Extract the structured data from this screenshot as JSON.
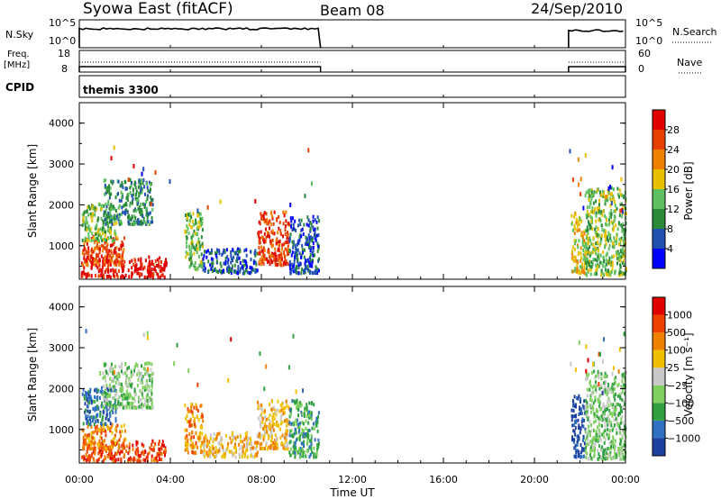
{
  "header": {
    "station": "Syowa East (fitACF)",
    "beam": "Beam 08",
    "date": "24/Sep/2010"
  },
  "strip_labels": {
    "nsky": "N.Sky",
    "nsky_ticks": [
      "10^5",
      "10^0"
    ],
    "nsearch": "N.Search",
    "nsearch_ticks": [
      "10^5",
      "10^0"
    ],
    "freq": "Freq.",
    "freq_unit": "[MHz]",
    "freq_ticks": [
      "18",
      "8"
    ],
    "nave": "Nave",
    "nave_ticks": [
      "60",
      "0"
    ],
    "cpid": "CPID",
    "cpid_value": "themis 3300"
  },
  "xaxis": {
    "label": "Time UT",
    "ticks": [
      "00:00",
      "04:00",
      "08:00",
      "12:00",
      "16:00",
      "20:00",
      "00:00"
    ]
  },
  "power_panel": {
    "ylabel": "Slant Range [km]",
    "yticks": [
      "4000",
      "3000",
      "2000",
      "1000"
    ],
    "cbar_label": "Power [dB]",
    "cbar_ticks": [
      "28",
      "24",
      "20",
      "16",
      "12",
      "8",
      "4"
    ]
  },
  "velocity_panel": {
    "ylabel": "Slant Range [km]",
    "yticks": [
      "4000",
      "3000",
      "2000",
      "1000"
    ],
    "cbar_label": "Velocity [m s⁻¹]",
    "cbar_ticks": [
      "1000",
      "500",
      "100",
      "25",
      "−25",
      "−100",
      "−500",
      "−1000"
    ]
  },
  "chart_data": {
    "type": "heatmap",
    "x_range_hours": [
      0,
      24
    ],
    "y_range_km": [
      180,
      4500
    ],
    "power_colors": [
      "#0000ff",
      "#2050b0",
      "#2a8a3a",
      "#5fc060",
      "#e8c000",
      "#f08000",
      "#e84000",
      "#e00000"
    ],
    "velocity_colors": [
      "#2040a0",
      "#3070c0",
      "#30a040",
      "#80d060",
      "#c8c8c8",
      "#f0c000",
      "#f08000",
      "#f04000",
      "#e00000"
    ],
    "data_segments_hours": [
      [
        0,
        10.6
      ],
      [
        21.5,
        24
      ]
    ],
    "power_blobs": [
      {
        "t": [
          0.05,
          3.8
        ],
        "r": [
          200,
          700
        ],
        "level": 7
      },
      {
        "t": [
          0.1,
          2.0
        ],
        "r": [
          500,
          1200
        ],
        "level": 6
      },
      {
        "t": [
          0.1,
          1.6
        ],
        "r": [
          1100,
          2000
        ],
        "level": 3
      },
      {
        "t": [
          1.0,
          3.2
        ],
        "r": [
          1500,
          2600
        ],
        "level": 2
      },
      {
        "t": [
          4.6,
          5.4
        ],
        "r": [
          400,
          1800
        ],
        "level": 3
      },
      {
        "t": [
          5.4,
          7.8
        ],
        "r": [
          300,
          900
        ],
        "level": 1
      },
      {
        "t": [
          7.8,
          9.2
        ],
        "r": [
          500,
          1800
        ],
        "level": 6
      },
      {
        "t": [
          9.2,
          10.5
        ],
        "r": [
          300,
          1700
        ],
        "level": 1
      },
      {
        "t": [
          21.6,
          22.2
        ],
        "r": [
          300,
          1800
        ],
        "level": 4
      },
      {
        "t": [
          22.2,
          24.0
        ],
        "r": [
          250,
          2400
        ],
        "level": 3
      }
    ],
    "velocity_blobs": [
      {
        "t": [
          0.05,
          3.8
        ],
        "r": [
          200,
          700
        ],
        "level": 7
      },
      {
        "t": [
          0.1,
          2.0
        ],
        "r": [
          500,
          1100
        ],
        "level": 6
      },
      {
        "t": [
          0.1,
          1.6
        ],
        "r": [
          1100,
          2000
        ],
        "level": 1
      },
      {
        "t": [
          1.0,
          3.2
        ],
        "r": [
          1500,
          2600
        ],
        "level": 3
      },
      {
        "t": [
          4.6,
          5.4
        ],
        "r": [
          400,
          1600
        ],
        "level": 6
      },
      {
        "t": [
          5.4,
          7.8
        ],
        "r": [
          300,
          900
        ],
        "level": 5
      },
      {
        "t": [
          7.8,
          9.2
        ],
        "r": [
          500,
          1700
        ],
        "level": 5
      },
      {
        "t": [
          9.2,
          10.5
        ],
        "r": [
          300,
          1700
        ],
        "level": 2
      },
      {
        "t": [
          21.6,
          22.2
        ],
        "r": [
          300,
          1800
        ],
        "level": 0
      },
      {
        "t": [
          22.2,
          24.0
        ],
        "r": [
          250,
          2400
        ],
        "level": 3
      }
    ]
  }
}
